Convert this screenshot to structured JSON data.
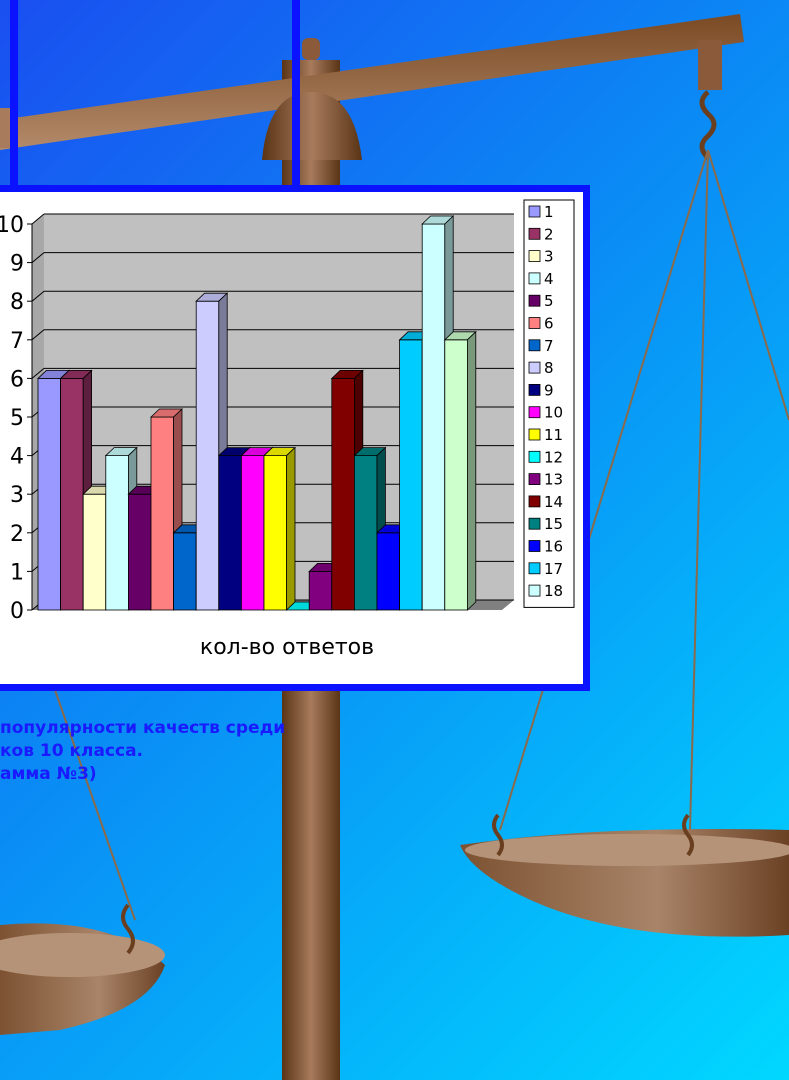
{
  "colors": {
    "background_top": "#1a4ff0",
    "background_bottom": "#00d8ff",
    "frame": "#0b12ff",
    "scale_wood": "#8a5a3a"
  },
  "caption": {
    "lines": [
      "популярности качеств среди",
      "ков 10 класса.",
      "амма №3)"
    ]
  },
  "chart_data": {
    "type": "bar",
    "title": "",
    "xlabel": "кол-во ответов",
    "ylabel": "",
    "ylim": [
      0,
      10
    ],
    "y_ticks": [
      0,
      1,
      2,
      3,
      4,
      5,
      6,
      7,
      8,
      9,
      10
    ],
    "grid": true,
    "legend_position": "right",
    "categories": [
      "кол-во ответов"
    ],
    "series": [
      {
        "name": "1",
        "values": [
          6
        ],
        "color": "#9999ff"
      },
      {
        "name": "2",
        "values": [
          6
        ],
        "color": "#993366"
      },
      {
        "name": "3",
        "values": [
          3
        ],
        "color": "#ffffcc"
      },
      {
        "name": "4",
        "values": [
          4
        ],
        "color": "#ccffff"
      },
      {
        "name": "5",
        "values": [
          3
        ],
        "color": "#660066"
      },
      {
        "name": "6",
        "values": [
          5
        ],
        "color": "#ff8080"
      },
      {
        "name": "7",
        "values": [
          2
        ],
        "color": "#0066cc"
      },
      {
        "name": "8",
        "values": [
          8
        ],
        "color": "#ccccff"
      },
      {
        "name": "9",
        "values": [
          4
        ],
        "color": "#000080"
      },
      {
        "name": "10",
        "values": [
          4
        ],
        "color": "#ff00ff"
      },
      {
        "name": "11",
        "values": [
          4
        ],
        "color": "#ffff00"
      },
      {
        "name": "12",
        "values": [
          0
        ],
        "color": "#00ffff"
      },
      {
        "name": "13",
        "values": [
          1
        ],
        "color": "#800080"
      },
      {
        "name": "14",
        "values": [
          6
        ],
        "color": "#800000"
      },
      {
        "name": "15",
        "values": [
          4
        ],
        "color": "#008080"
      },
      {
        "name": "16",
        "values": [
          2
        ],
        "color": "#0000ff"
      },
      {
        "name": "17",
        "values": [
          7
        ],
        "color": "#00ccff"
      },
      {
        "name": "18",
        "values": [
          10
        ],
        "color": "#ccffff"
      },
      {
        "name": "",
        "values": [
          7
        ],
        "color": "#ccffcc"
      }
    ]
  }
}
